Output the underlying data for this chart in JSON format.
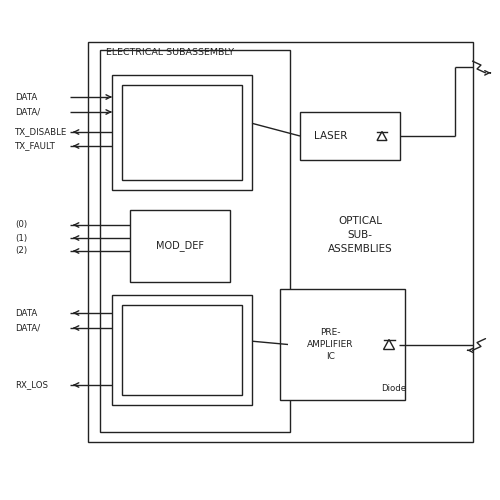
{
  "bg_color": "#ffffff",
  "ec": "#222222",
  "lw": 1.0,
  "fig_w": 5.0,
  "fig_h": 5.0,
  "dpi": 100,
  "elec_label": "ELECTRICAL SUBASSEMBLY",
  "optical_label": "OPTICAL\nSUB-\nASSEMBLIES",
  "laser_label": "LASER",
  "preamp_label": "PRE-\nAMPLIFIER\nIC",
  "diode_label": "Diode",
  "mod_def_label": "MOD_DEF",
  "top_labels": [
    "DATA",
    "DATA/",
    "TX_DISABLE",
    "TX_FAULT"
  ],
  "top_arrows_in": [
    true,
    true,
    false,
    false
  ],
  "mid_labels": [
    "(0)",
    "(1)",
    "(2)"
  ],
  "bot_labels": [
    "DATA",
    "DATA/",
    "RX_LOS"
  ]
}
